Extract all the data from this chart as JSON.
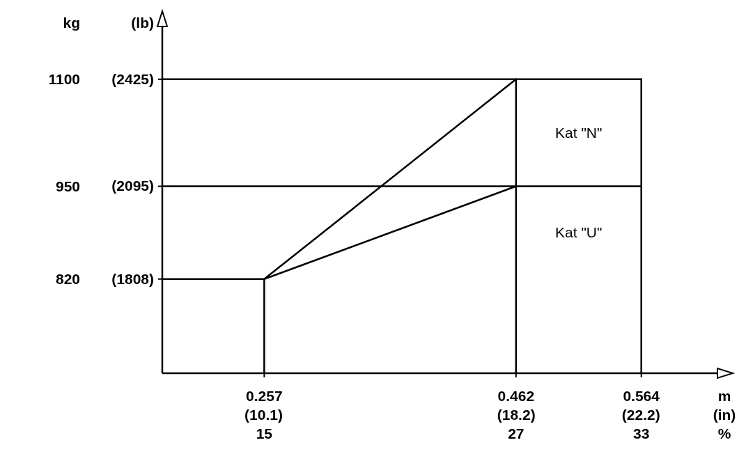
{
  "chart_data": {
    "type": "line",
    "xlabel": "m",
    "x2label": "(in)",
    "ylabel": "kg",
    "y2label": "(lb)",
    "xlim": [
      0.174,
      0.626
    ],
    "ylim": [
      688,
      1174
    ],
    "x2lim": [
      6.85,
      24.65
    ],
    "y2lim": [
      1517,
      2588
    ],
    "xticks": [
      0.257,
      0.462,
      0.564
    ],
    "x2ticks": [
      {
        "value": 10.1,
        "label": "(10.1)"
      },
      {
        "value": 18.2,
        "label": "(18.2)"
      },
      {
        "value": 22.2,
        "label": "(22.2)"
      }
    ],
    "yticks": [
      820,
      950,
      1100
    ],
    "y2ticks": [
      {
        "value": 1808,
        "label": "(1808)"
      },
      {
        "value": 2095,
        "label": "(2095)"
      },
      {
        "value": 2425,
        "label": "(2425)"
      }
    ],
    "grid": false,
    "marker": "none",
    "line_style": "solid",
    "series": [
      {
        "color": "#000000",
        "x": [
          0.174,
          0.564
        ],
        "values": [
          1100,
          1100
        ]
      },
      {
        "color": "#000000",
        "x": [
          0.174,
          0.564
        ],
        "values": [
          950,
          950
        ]
      },
      {
        "color": "#000000",
        "x": [
          0.174,
          0.257,
          0.462
        ],
        "values": [
          820,
          820,
          950
        ]
      },
      {
        "color": "#000000",
        "x": [
          0.257,
          0.257
        ],
        "values": [
          688,
          820
        ]
      },
      {
        "color": "#000000",
        "x": [
          0.462,
          0.462
        ],
        "values": [
          688,
          1100
        ]
      },
      {
        "color": "#000000",
        "x": [
          0.564,
          0.564
        ],
        "values": [
          688,
          1100
        ]
      },
      {
        "color": "#000000",
        "x": [
          0.257,
          0.462
        ],
        "values": [
          820,
          1100
        ]
      }
    ],
    "annotations": [
      "Kat \"N\"",
      "Kat \"U\"",
      "15",
      "27",
      "33",
      "%"
    ]
  }
}
